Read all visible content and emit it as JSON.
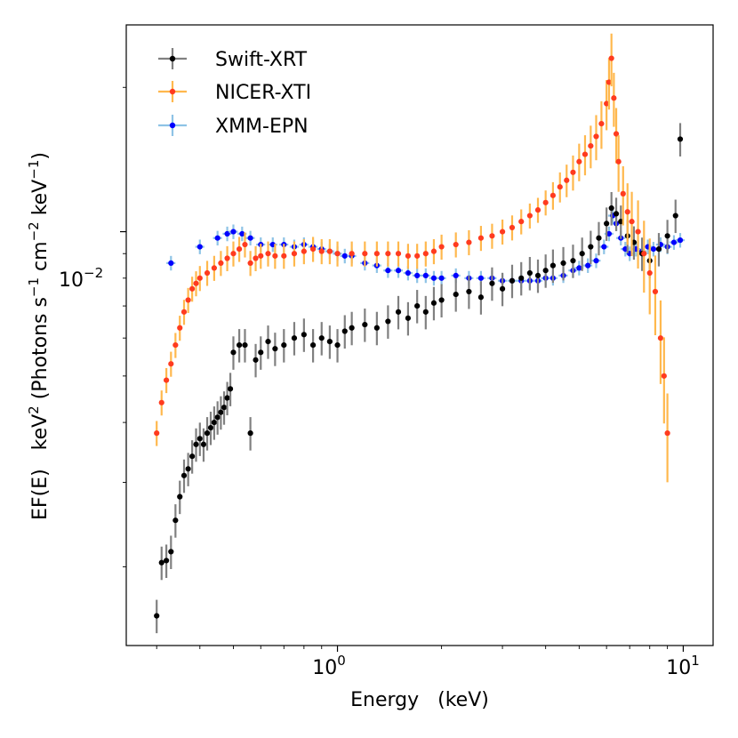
{
  "chart_data": {
    "type": "scatter",
    "xscale": "log",
    "yscale": "log",
    "xlim": [
      0.245,
      12.2
    ],
    "ylim": [
      0.00137,
      0.027
    ],
    "xlabel": "Energy   (keV)",
    "ylabel_prefix": "EF(E)   keV",
    "ylabel_body": " (Photons s",
    "ylabel_cm": " cm",
    "ylabel_kev": " keV",
    "ylabel_close": ")",
    "ylabel_sup2": "2",
    "ylabel_supm1": "−1",
    "ylabel_supm2": "−2",
    "x_tick_base": "10",
    "x_tick_exp_0": "0",
    "x_tick_exp_1": "1",
    "y_tick_base": "10",
    "y_tick_exp": "−2",
    "major_xticks": [
      1,
      10
    ],
    "major_yticks": [
      0.01
    ],
    "legend_position": "upper-left",
    "series": [
      {
        "name": "Swift-XRT",
        "marker_color": "#000000",
        "error_color": "#808080",
        "points": [
          [
            0.3,
            0.00158
          ],
          [
            0.31,
            0.00204
          ],
          [
            0.32,
            0.00206
          ],
          [
            0.33,
            0.00215
          ],
          [
            0.34,
            0.0025
          ],
          [
            0.35,
            0.0028
          ],
          [
            0.36,
            0.0031
          ],
          [
            0.37,
            0.0032
          ],
          [
            0.38,
            0.0034
          ],
          [
            0.39,
            0.0036
          ],
          [
            0.4,
            0.0037
          ],
          [
            0.41,
            0.0036
          ],
          [
            0.42,
            0.0038
          ],
          [
            0.43,
            0.0039
          ],
          [
            0.44,
            0.004
          ],
          [
            0.45,
            0.0041
          ],
          [
            0.46,
            0.0042
          ],
          [
            0.47,
            0.0043
          ],
          [
            0.48,
            0.0045
          ],
          [
            0.49,
            0.0047
          ],
          [
            0.5,
            0.0056
          ],
          [
            0.52,
            0.0058
          ],
          [
            0.54,
            0.0058
          ],
          [
            0.56,
            0.0038
          ],
          [
            0.58,
            0.0054
          ],
          [
            0.6,
            0.0056
          ],
          [
            0.63,
            0.0059
          ],
          [
            0.66,
            0.0057
          ],
          [
            0.7,
            0.0058
          ],
          [
            0.75,
            0.006
          ],
          [
            0.8,
            0.0061
          ],
          [
            0.85,
            0.0058
          ],
          [
            0.9,
            0.006
          ],
          [
            0.95,
            0.0059
          ],
          [
            1.0,
            0.0058
          ],
          [
            1.05,
            0.0062
          ],
          [
            1.1,
            0.0063
          ],
          [
            1.2,
            0.0064
          ],
          [
            1.3,
            0.0063
          ],
          [
            1.4,
            0.0065
          ],
          [
            1.5,
            0.0068
          ],
          [
            1.6,
            0.0066
          ],
          [
            1.7,
            0.007
          ],
          [
            1.8,
            0.0068
          ],
          [
            1.9,
            0.0071
          ],
          [
            2.0,
            0.0072
          ],
          [
            2.2,
            0.0074
          ],
          [
            2.4,
            0.0075
          ],
          [
            2.6,
            0.0073
          ],
          [
            2.8,
            0.0078
          ],
          [
            3.0,
            0.0076
          ],
          [
            3.2,
            0.0079
          ],
          [
            3.4,
            0.008
          ],
          [
            3.6,
            0.0082
          ],
          [
            3.8,
            0.0081
          ],
          [
            4.0,
            0.0083
          ],
          [
            4.2,
            0.0085
          ],
          [
            4.5,
            0.0086
          ],
          [
            4.8,
            0.0087
          ],
          [
            5.1,
            0.009
          ],
          [
            5.4,
            0.0093
          ],
          [
            5.7,
            0.0097
          ],
          [
            6.0,
            0.0104
          ],
          [
            6.2,
            0.0112
          ],
          [
            6.4,
            0.0109
          ],
          [
            6.6,
            0.0105
          ],
          [
            6.9,
            0.0098
          ],
          [
            7.2,
            0.0095
          ],
          [
            7.6,
            0.009
          ],
          [
            8.0,
            0.0087
          ],
          [
            8.5,
            0.0092
          ],
          [
            9.0,
            0.0098
          ],
          [
            9.5,
            0.0108
          ],
          [
            9.8,
            0.0156
          ]
        ]
      },
      {
        "name": "NICER-XTI",
        "marker_color": "#ff3b1f",
        "error_color": "#ffb84d",
        "points": [
          [
            0.3,
            0.0038
          ],
          [
            0.31,
            0.0044
          ],
          [
            0.32,
            0.0049
          ],
          [
            0.33,
            0.0053
          ],
          [
            0.34,
            0.0058
          ],
          [
            0.35,
            0.0063
          ],
          [
            0.36,
            0.0068
          ],
          [
            0.37,
            0.0072
          ],
          [
            0.38,
            0.0076
          ],
          [
            0.39,
            0.0078
          ],
          [
            0.4,
            0.008
          ],
          [
            0.42,
            0.0082
          ],
          [
            0.44,
            0.0084
          ],
          [
            0.46,
            0.0086
          ],
          [
            0.48,
            0.0088
          ],
          [
            0.5,
            0.009
          ],
          [
            0.52,
            0.0092
          ],
          [
            0.54,
            0.0094
          ],
          [
            0.56,
            0.0086
          ],
          [
            0.58,
            0.0088
          ],
          [
            0.6,
            0.0089
          ],
          [
            0.63,
            0.009
          ],
          [
            0.66,
            0.0089
          ],
          [
            0.7,
            0.0089
          ],
          [
            0.75,
            0.009
          ],
          [
            0.8,
            0.0091
          ],
          [
            0.85,
            0.0092
          ],
          [
            0.9,
            0.0091
          ],
          [
            0.95,
            0.0091
          ],
          [
            1.0,
            0.009
          ],
          [
            1.1,
            0.009
          ],
          [
            1.2,
            0.009
          ],
          [
            1.3,
            0.009
          ],
          [
            1.4,
            0.009
          ],
          [
            1.5,
            0.009
          ],
          [
            1.6,
            0.0089
          ],
          [
            1.7,
            0.0089
          ],
          [
            1.8,
            0.009
          ],
          [
            1.9,
            0.0091
          ],
          [
            2.0,
            0.0093
          ],
          [
            2.2,
            0.0094
          ],
          [
            2.4,
            0.0095
          ],
          [
            2.6,
            0.0097
          ],
          [
            2.8,
            0.0098
          ],
          [
            3.0,
            0.01
          ],
          [
            3.2,
            0.0102
          ],
          [
            3.4,
            0.0105
          ],
          [
            3.6,
            0.0108
          ],
          [
            3.8,
            0.0111
          ],
          [
            4.0,
            0.0115
          ],
          [
            4.2,
            0.0119
          ],
          [
            4.4,
            0.0124
          ],
          [
            4.6,
            0.0128
          ],
          [
            4.8,
            0.0133
          ],
          [
            5.0,
            0.014
          ],
          [
            5.2,
            0.0145
          ],
          [
            5.4,
            0.0151
          ],
          [
            5.6,
            0.0158
          ],
          [
            5.8,
            0.0168
          ],
          [
            6.0,
            0.0185
          ],
          [
            6.1,
            0.0205
          ],
          [
            6.2,
            0.023
          ],
          [
            6.3,
            0.019
          ],
          [
            6.4,
            0.016
          ],
          [
            6.5,
            0.014
          ],
          [
            6.7,
            0.012
          ],
          [
            6.9,
            0.011
          ],
          [
            7.1,
            0.0105
          ],
          [
            7.4,
            0.01
          ],
          [
            7.7,
            0.009
          ],
          [
            8.0,
            0.0082
          ],
          [
            8.3,
            0.0075
          ],
          [
            8.6,
            0.006
          ],
          [
            8.8,
            0.005
          ],
          [
            9.0,
            0.0038
          ]
        ]
      },
      {
        "name": "XMM-EPN",
        "marker_color": "#0000ff",
        "error_color": "#8ec3e6",
        "points": [
          [
            0.33,
            0.0086
          ],
          [
            0.4,
            0.0093
          ],
          [
            0.45,
            0.0097
          ],
          [
            0.48,
            0.0099
          ],
          [
            0.5,
            0.01
          ],
          [
            0.53,
            0.0099
          ],
          [
            0.56,
            0.0097
          ],
          [
            0.6,
            0.0094
          ],
          [
            0.65,
            0.0094
          ],
          [
            0.7,
            0.0094
          ],
          [
            0.75,
            0.0093
          ],
          [
            0.8,
            0.0094
          ],
          [
            0.85,
            0.0093
          ],
          [
            0.9,
            0.0092
          ],
          [
            0.95,
            0.0091
          ],
          [
            1.0,
            0.009
          ],
          [
            1.05,
            0.0089
          ],
          [
            1.1,
            0.0089
          ],
          [
            1.2,
            0.0086
          ],
          [
            1.3,
            0.0085
          ],
          [
            1.4,
            0.0083
          ],
          [
            1.5,
            0.0083
          ],
          [
            1.6,
            0.0082
          ],
          [
            1.7,
            0.0081
          ],
          [
            1.8,
            0.0081
          ],
          [
            1.9,
            0.008
          ],
          [
            2.0,
            0.008
          ],
          [
            2.2,
            0.0081
          ],
          [
            2.4,
            0.008
          ],
          [
            2.6,
            0.008
          ],
          [
            2.8,
            0.008
          ],
          [
            3.0,
            0.0079
          ],
          [
            3.2,
            0.0079
          ],
          [
            3.4,
            0.0079
          ],
          [
            3.6,
            0.0079
          ],
          [
            3.8,
            0.0079
          ],
          [
            4.0,
            0.008
          ],
          [
            4.2,
            0.008
          ],
          [
            4.5,
            0.0081
          ],
          [
            4.8,
            0.0083
          ],
          [
            5.0,
            0.0084
          ],
          [
            5.3,
            0.0085
          ],
          [
            5.6,
            0.0087
          ],
          [
            5.9,
            0.0093
          ],
          [
            6.1,
            0.0099
          ],
          [
            6.25,
            0.0108
          ],
          [
            6.4,
            0.0104
          ],
          [
            6.6,
            0.0097
          ],
          [
            6.8,
            0.0092
          ],
          [
            7.0,
            0.009
          ],
          [
            7.3,
            0.0092
          ],
          [
            7.6,
            0.0091
          ],
          [
            7.9,
            0.0093
          ],
          [
            8.2,
            0.0092
          ],
          [
            8.6,
            0.0094
          ],
          [
            9.0,
            0.0093
          ],
          [
            9.4,
            0.0095
          ],
          [
            9.8,
            0.0096
          ]
        ]
      }
    ]
  }
}
